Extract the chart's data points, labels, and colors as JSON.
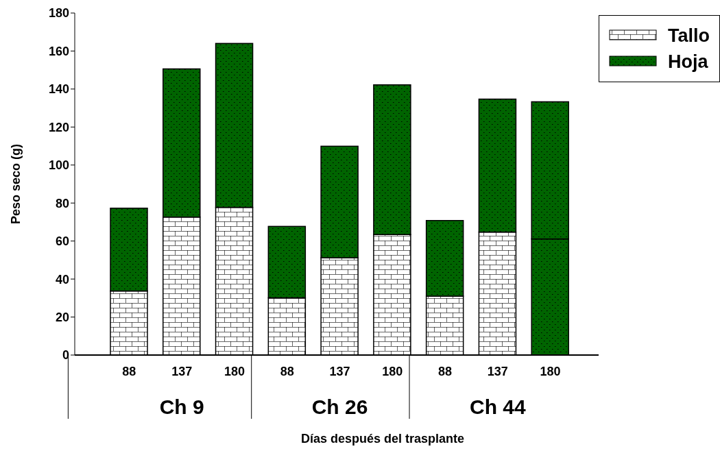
{
  "chart_data": {
    "type": "bar",
    "stacked": true,
    "categories": [
      "88",
      "137",
      "180",
      "88",
      "137",
      "180",
      "88",
      "137",
      "180"
    ],
    "series": [
      {
        "name": "Tallo",
        "color": "#ffffff",
        "colors": [
          "#ffffff",
          "#ffffff",
          "#ffffff",
          "#ffffff",
          "#ffffff",
          "#ffffff",
          "#ffffff",
          "#ffffff",
          "#006400"
        ],
        "values": [
          33.7,
          72.6,
          77.7,
          30.1,
          51.2,
          63.4,
          31.0,
          64.7,
          61.1
        ]
      },
      {
        "name": "Hoja",
        "color": "#006400",
        "values": [
          43.6,
          78.0,
          86.3,
          37.6,
          58.7,
          78.8,
          39.8,
          70.0,
          72.2
        ]
      }
    ],
    "annotations": [
      "Ch 9",
      "Ch 26",
      "Ch 44"
    ],
    "xlabel": "Días después del trasplante",
    "ylabel": "Peso seco (g)",
    "ylim": [
      0,
      180
    ],
    "yticks": [
      0,
      20,
      40,
      60,
      80,
      100,
      120,
      140,
      160,
      180
    ],
    "grid": false,
    "legend": "top right"
  }
}
